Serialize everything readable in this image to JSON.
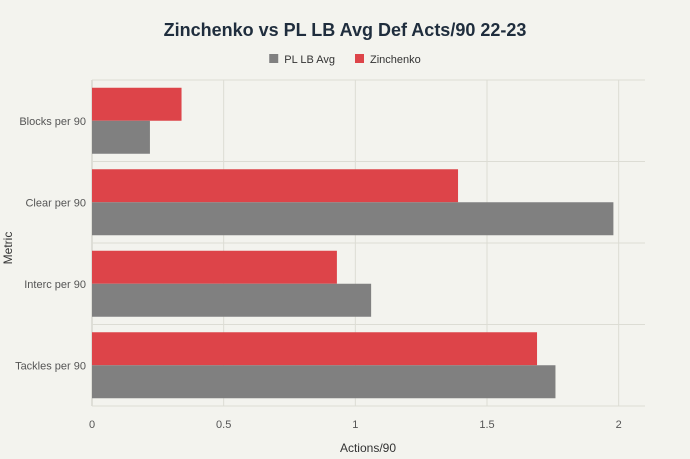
{
  "chart_data": {
    "type": "bar",
    "orientation": "horizontal",
    "title": "Zinchenko vs PL LB Avg Def Acts/90 22-23",
    "xlabel": "Actions/90",
    "ylabel": "Metric",
    "categories": [
      "Blocks per 90",
      "Clear per 90",
      "Interc per 90",
      "Tackles per 90"
    ],
    "series": [
      {
        "name": "Zinchenko",
        "values": [
          0.34,
          1.39,
          0.93,
          1.69
        ],
        "color": "#dd4449"
      },
      {
        "name": "PL LB Avg",
        "values": [
          0.22,
          1.98,
          1.06,
          1.76
        ],
        "color": "#808080"
      }
    ],
    "legend_order": [
      "PL LB Avg",
      "Zinchenko"
    ],
    "legend_position": "top-center",
    "xlim": [
      0,
      2.1
    ],
    "xticks": [
      0,
      0.5,
      1,
      1.5,
      2
    ],
    "xtick_labels": [
      "0",
      "0.5",
      "1",
      "1.5",
      "2"
    ],
    "grid": true
  }
}
